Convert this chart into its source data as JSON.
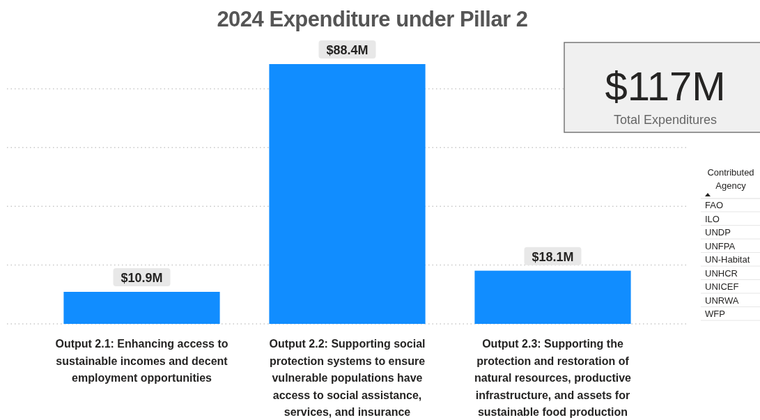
{
  "chart_data": [
    {
      "type": "bar",
      "title": "2024 Expenditure under Pillar 2",
      "categories": [
        "Output 2.1: Enhancing access to sustainable incomes and decent employment opportunities",
        "Output 2.2: Supporting social protection systems to ensure vulnerable populations have access to social assistance, services, and insurance",
        "Output 2.3: Supporting the protection and restoration of natural resources, productive infrastructure, and assets for sustainable food production"
      ],
      "values": [
        10.9,
        88.4,
        18.1
      ],
      "color": "#118dff",
      "value_labels": [
        "$10.9M",
        "$88.4M",
        "$18.1M"
      ],
      "yticks": [
        {
          "value": 0,
          "label": null
        },
        {
          "value": 20,
          "label": null
        },
        {
          "value": 40,
          "label": null
        },
        {
          "value": 60,
          "label": null
        },
        {
          "value": 80,
          "label": null
        }
      ],
      "grid": "y",
      "tick_labels": "x"
    },
    {
      "type": "other",
      "title": "$117M",
      "subtitle": "Total Expenditures"
    },
    {
      "type": "other",
      "title": "Contributed Agency",
      "annotations": [
        "FAO",
        "ILO",
        "UNDP",
        "UNFPA",
        "UN-Habitat",
        "UNHCR",
        "UNICEF",
        "UNRWA",
        "WFP"
      ]
    }
  ]
}
